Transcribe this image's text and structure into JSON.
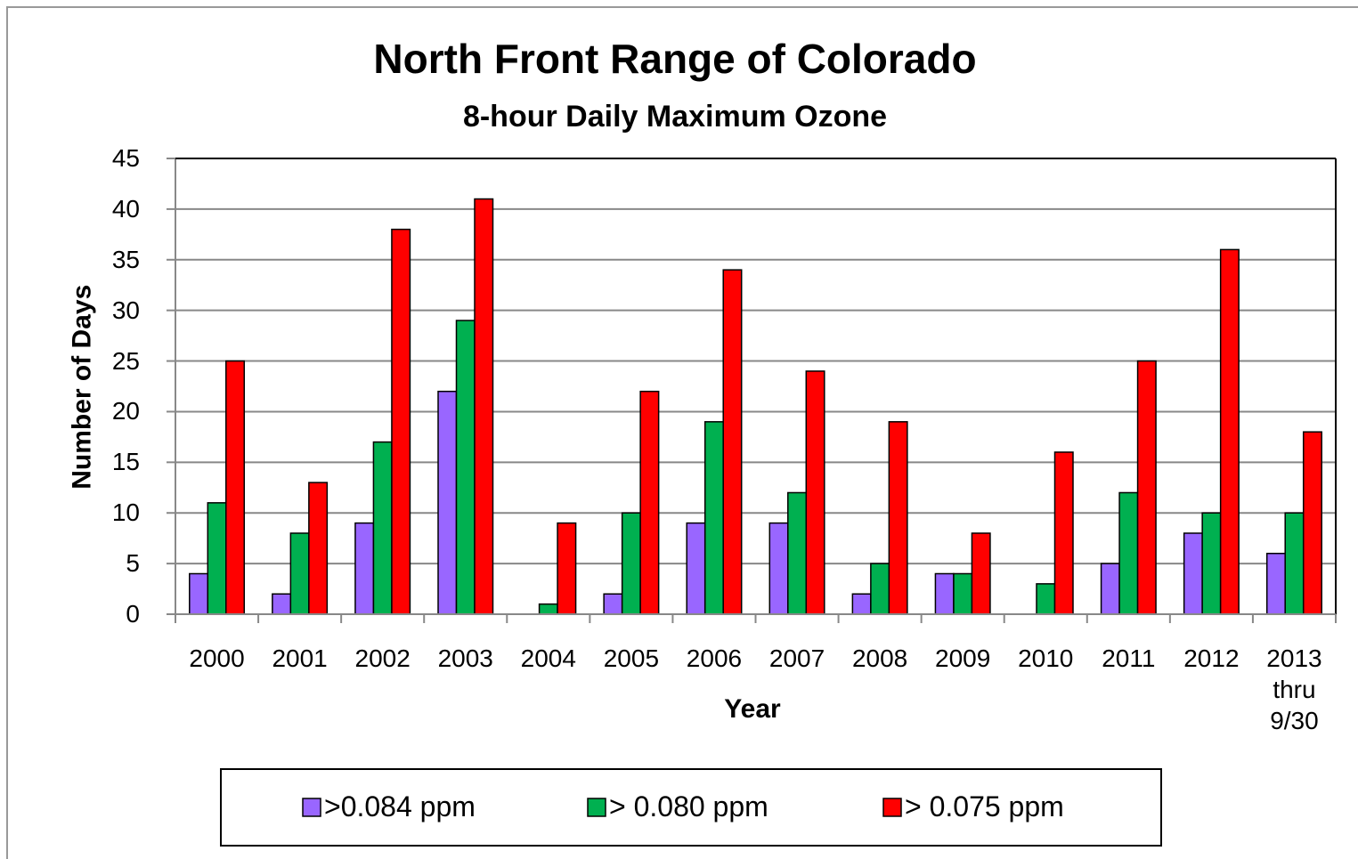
{
  "chart_data": {
    "type": "bar",
    "title": "North Front Range of Colorado",
    "subtitle": "8-hour Daily Maximum Ozone",
    "x_label": "Year",
    "y_label": "Number of Days",
    "categories": [
      "2000",
      "2001",
      "2002",
      "2003",
      "2004",
      "2005",
      "2006",
      "2007",
      "2008",
      "2009",
      "2010",
      "2011",
      "2012",
      "2013 thru 9/30"
    ],
    "series": [
      {
        "name": ">0.084 ppm",
        "color": "#9966ff",
        "values": [
          4,
          2,
          9,
          22,
          0,
          2,
          9,
          9,
          2,
          4,
          0,
          5,
          8,
          6
        ]
      },
      {
        "name": "> 0.080 ppm",
        "color": "#00b050",
        "values": [
          11,
          8,
          17,
          29,
          1,
          10,
          19,
          12,
          5,
          4,
          3,
          12,
          10,
          10
        ]
      },
      {
        "name": "> 0.075 ppm",
        "color": "#ff0000",
        "values": [
          25,
          13,
          38,
          41,
          9,
          22,
          34,
          24,
          19,
          8,
          16,
          25,
          36,
          18
        ]
      }
    ],
    "ylim": [
      0,
      45
    ],
    "yticks": [
      0,
      5,
      10,
      15,
      20,
      25,
      30,
      35,
      40,
      45
    ],
    "grid": true,
    "legend": "bottom"
  }
}
